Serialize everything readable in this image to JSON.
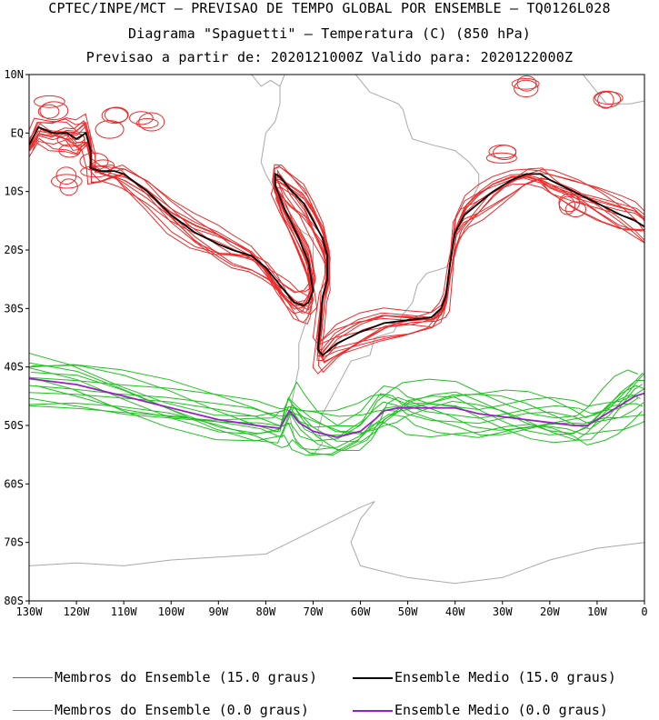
{
  "header": {
    "line1": "CPTEC/INPE/MCT – PREVISAO DE TEMPO GLOBAL POR ENSEMBLE – TQ0126L028",
    "line2": "Diagrama \"Spaguetti\" – Temperatura (C) (850 hPa)",
    "line3": "Previsao a partir de: 2020121000Z  Valido para: 2020122000Z"
  },
  "colors": {
    "members_15": "#ee2a2a",
    "mean_15": "#000000",
    "members_0": "#1ec21e",
    "mean_0": "#9b1fc9",
    "coastline": "#a9a9a9"
  },
  "chart_data": {
    "type": "line",
    "xlabel": "",
    "ylabel": "",
    "xlim": [
      -130,
      0
    ],
    "ylim": [
      -80,
      10
    ],
    "x_ticks": [
      "130W",
      "120W",
      "110W",
      "100W",
      "90W",
      "80W",
      "70W",
      "60W",
      "50W",
      "40W",
      "30W",
      "20W",
      "10W",
      "0"
    ],
    "y_ticks": [
      "10N",
      "EQ",
      "10S",
      "20S",
      "30S",
      "40S",
      "50S",
      "60S",
      "70S",
      "80S"
    ],
    "legend": [
      {
        "label": "Membros do Ensemble (15.0 graus)",
        "color": "#ee2a2a"
      },
      {
        "label": "Ensemble Medio (15.0 graus)",
        "color": "#000000"
      },
      {
        "label": "Membros do Ensemble (0.0 graus)",
        "color": "#1ec21e"
      },
      {
        "label": "Ensemble Medio (0.0 graus)",
        "color": "#9b1fc9"
      }
    ],
    "series": [
      {
        "name": "Ensemble Medio (15.0 graus)",
        "x": [
          -130,
          -128,
          -125,
          -122,
          -120,
          -118,
          -117,
          -117,
          -115,
          -112,
          -110,
          -105,
          -100,
          -95,
          -90,
          -87,
          -83,
          -80,
          -78,
          -76,
          -74,
          -72,
          -71,
          -70,
          -71,
          -73,
          -76,
          -78,
          -78,
          -77,
          -75,
          -72,
          -70,
          -68,
          -67,
          -67,
          -68,
          -68.5,
          -69,
          -68,
          -65,
          -60,
          -55,
          -50,
          -45,
          -43,
          -42,
          -41,
          -40,
          -38,
          -35,
          -32,
          -28,
          -25,
          -22,
          -20,
          -15,
          -10,
          -5,
          -2,
          0
        ],
        "y": [
          -2,
          1,
          0,
          0,
          -1,
          0,
          -3,
          -6,
          -6.5,
          -6.5,
          -7,
          -10,
          -14,
          -17,
          -19,
          -20,
          -21,
          -23,
          -25,
          -27,
          -29,
          -29.5,
          -29,
          -27,
          -22,
          -18,
          -13,
          -9,
          -7,
          -7.5,
          -9.5,
          -12,
          -15,
          -18,
          -21,
          -25,
          -28,
          -33,
          -37,
          -38,
          -36,
          -34,
          -32.5,
          -32,
          -31.5,
          -30,
          -28,
          -22,
          -17,
          -14,
          -12,
          -10,
          -8,
          -7,
          -7,
          -8,
          -10,
          -12,
          -14,
          -15,
          -16
        ]
      },
      {
        "name": "Ensemble Medio (0.0 graus)",
        "x": [
          -130,
          -120,
          -110,
          -100,
          -90,
          -82,
          -77,
          -76,
          -75,
          -73,
          -70,
          -65,
          -60,
          -57,
          -55,
          -52,
          -50,
          -45,
          -40,
          -35,
          -30,
          -25,
          -20,
          -15,
          -12,
          -8,
          -5,
          -2,
          0
        ],
        "y": [
          -42,
          -43,
          -45,
          -47,
          -49,
          -50,
          -50.5,
          -49,
          -47.5,
          -49.5,
          -51,
          -52,
          -51,
          -49,
          -47.5,
          -47,
          -47,
          -47,
          -47,
          -48,
          -48.5,
          -49,
          -49.5,
          -50,
          -50,
          -48,
          -46.5,
          -45,
          -44.5
        ]
      }
    ]
  }
}
